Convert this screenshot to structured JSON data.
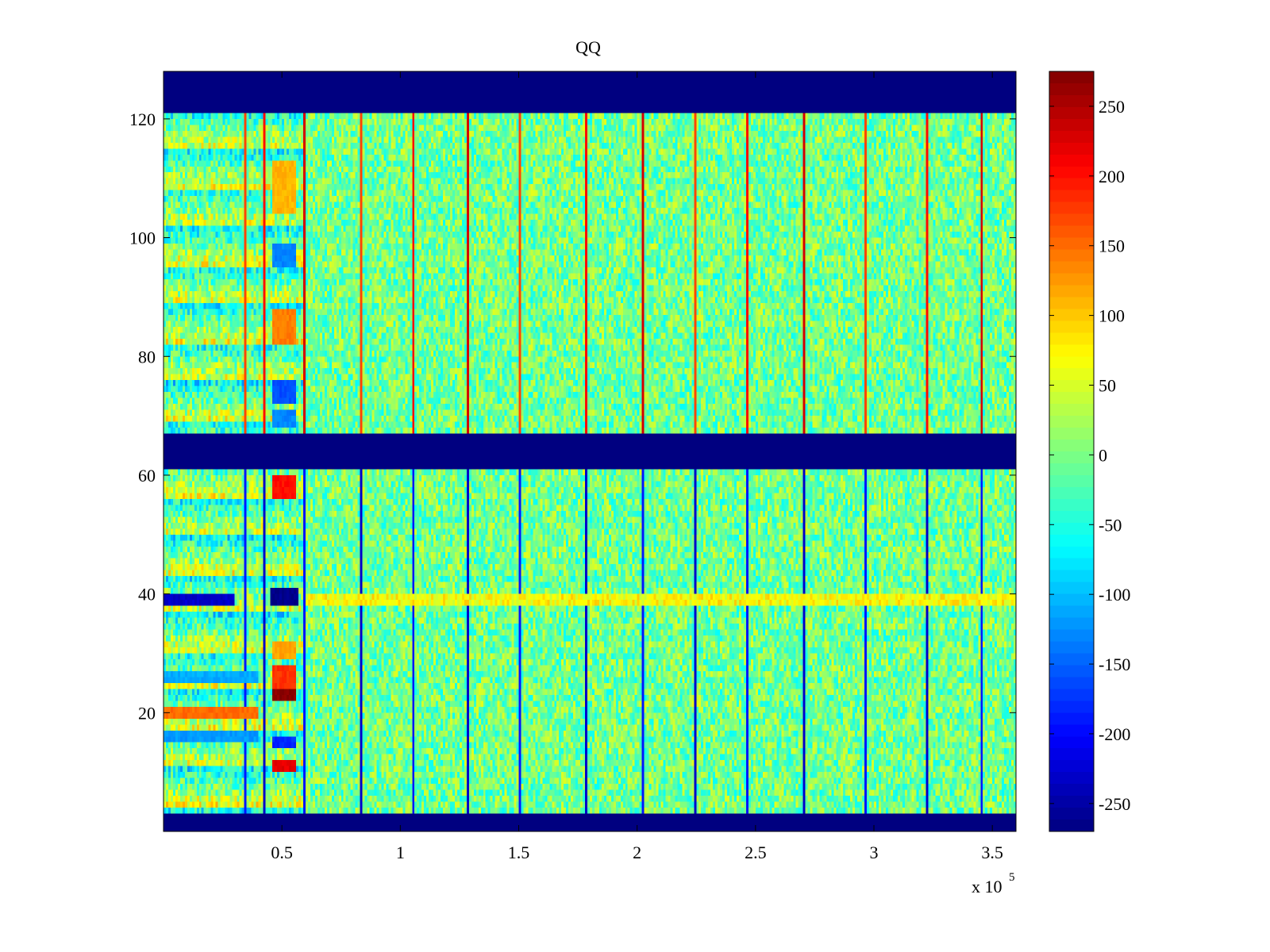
{
  "chart_data": {
    "type": "heatmap",
    "title": "QQ",
    "xlabel": "",
    "ylabel": "",
    "x_multiplier_label": "x 10",
    "x_multiplier_exponent": "5",
    "xlim": [
      0,
      360000
    ],
    "ylim": [
      0,
      128
    ],
    "x_ticks": [
      {
        "value": 50000,
        "label": "0.5"
      },
      {
        "value": 100000,
        "label": "1"
      },
      {
        "value": 150000,
        "label": "1.5"
      },
      {
        "value": 200000,
        "label": "2"
      },
      {
        "value": 250000,
        "label": "2.5"
      },
      {
        "value": 300000,
        "label": "3"
      },
      {
        "value": 350000,
        "label": "3.5"
      }
    ],
    "y_ticks": [
      {
        "value": 20,
        "label": "20"
      },
      {
        "value": 40,
        "label": "40"
      },
      {
        "value": 60,
        "label": "60"
      },
      {
        "value": 80,
        "label": "80"
      },
      {
        "value": 100,
        "label": "100"
      },
      {
        "value": 120,
        "label": "120"
      }
    ],
    "colorbar": {
      "clim": [
        -270,
        275
      ],
      "colormap": "jet",
      "ticks": [
        {
          "value": 250,
          "label": "250"
        },
        {
          "value": 200,
          "label": "200"
        },
        {
          "value": 150,
          "label": "150"
        },
        {
          "value": 100,
          "label": "100"
        },
        {
          "value": 50,
          "label": "50"
        },
        {
          "value": 0,
          "label": "0"
        },
        {
          "value": -50,
          "label": "-50"
        },
        {
          "value": -100,
          "label": "-100"
        },
        {
          "value": -150,
          "label": "-150"
        },
        {
          "value": -200,
          "label": "-200"
        },
        {
          "value": -250,
          "label": "-250"
        }
      ]
    },
    "masked_rows": [
      {
        "from": 0,
        "to": 3,
        "value": -270
      },
      {
        "from": 61,
        "to": 67,
        "value": -270
      },
      {
        "from": 121,
        "to": 128,
        "value": -270
      }
    ],
    "background_value_range": [
      -70,
      60
    ],
    "stripe_columns_x": [
      34000,
      42000,
      59000,
      83000,
      105000,
      128000,
      150000,
      178000,
      202000,
      224000,
      246000,
      270000,
      296000,
      322000,
      345000
    ],
    "feature_blocks": [
      {
        "x": [
          46000,
          56000
        ],
        "y": [
          104,
          113
        ],
        "value": 110
      },
      {
        "x": [
          46000,
          56000
        ],
        "y": [
          95,
          99
        ],
        "value": -130
      },
      {
        "x": [
          46000,
          56000
        ],
        "y": [
          82,
          88
        ],
        "value": 140
      },
      {
        "x": [
          46000,
          56000
        ],
        "y": [
          72,
          76
        ],
        "value": -160
      },
      {
        "x": [
          46000,
          56000
        ],
        "y": [
          68,
          71
        ],
        "value": -130
      },
      {
        "x": [
          46000,
          56000
        ],
        "y": [
          56,
          60
        ],
        "value": 200
      },
      {
        "x": [
          45000,
          57000
        ],
        "y": [
          38,
          41
        ],
        "value": -265
      },
      {
        "x": [
          46000,
          56000
        ],
        "y": [
          29,
          32
        ],
        "value": 120
      },
      {
        "x": [
          46000,
          56000
        ],
        "y": [
          24,
          28
        ],
        "value": 180
      },
      {
        "x": [
          46000,
          56000
        ],
        "y": [
          22,
          24
        ],
        "value": 270
      },
      {
        "x": [
          46000,
          56000
        ],
        "y": [
          14,
          16
        ],
        "value": -180
      },
      {
        "x": [
          46000,
          56000
        ],
        "y": [
          10,
          12
        ],
        "value": 220
      },
      {
        "x": [
          0,
          30000
        ],
        "y": [
          38,
          40
        ],
        "value": -230
      },
      {
        "x": [
          0,
          40000
        ],
        "y": [
          19,
          21
        ],
        "value": 150
      },
      {
        "x": [
          0,
          40000
        ],
        "y": [
          15,
          17
        ],
        "value": -120
      },
      {
        "x": [
          0,
          40000
        ],
        "y": [
          25,
          27
        ],
        "value": -110
      }
    ]
  }
}
